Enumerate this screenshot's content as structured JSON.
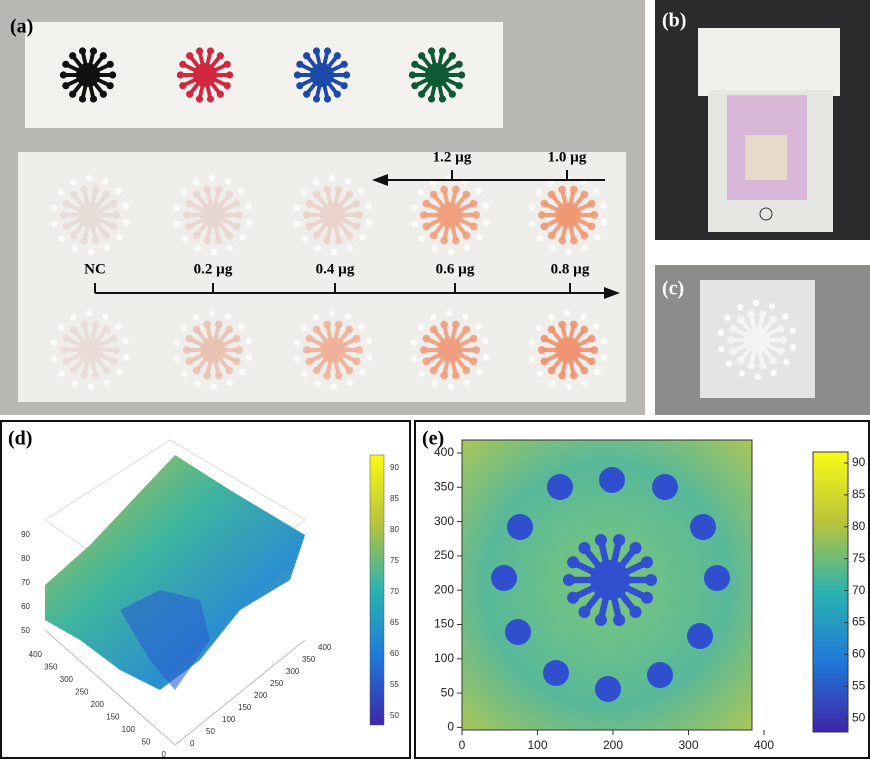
{
  "panels": {
    "a": {
      "label": "(a)",
      "arrow_top_labels": [
        "1.2 µg",
        "1.0 µg"
      ],
      "arrow_bottom_labels": [
        "NC",
        "0.2 µg",
        "0.4 µg",
        "0.6 µg",
        "0.8 µg"
      ]
    },
    "b": {
      "label": "(b)"
    },
    "c": {
      "label": "(c)"
    },
    "d": {
      "label": "(d)",
      "z_ticks": [
        90,
        80,
        70,
        60,
        50
      ],
      "left_ticks": [
        400,
        350,
        300,
        250,
        200,
        150,
        100,
        50,
        0
      ],
      "right_ticks": [
        400,
        350,
        300,
        250,
        200,
        150,
        100,
        50,
        0
      ],
      "colorbar_ticks": [
        90,
        85,
        80,
        75,
        70,
        65,
        60,
        55,
        50
      ]
    },
    "e": {
      "label": "(e)",
      "x_ticks": [
        0,
        100,
        200,
        300,
        400
      ],
      "y_ticks": [
        400,
        350,
        300,
        250,
        200,
        150,
        100,
        50,
        0
      ],
      "colorbar_ticks": [
        90,
        85,
        80,
        75,
        70,
        65,
        60,
        55,
        50
      ]
    }
  }
}
